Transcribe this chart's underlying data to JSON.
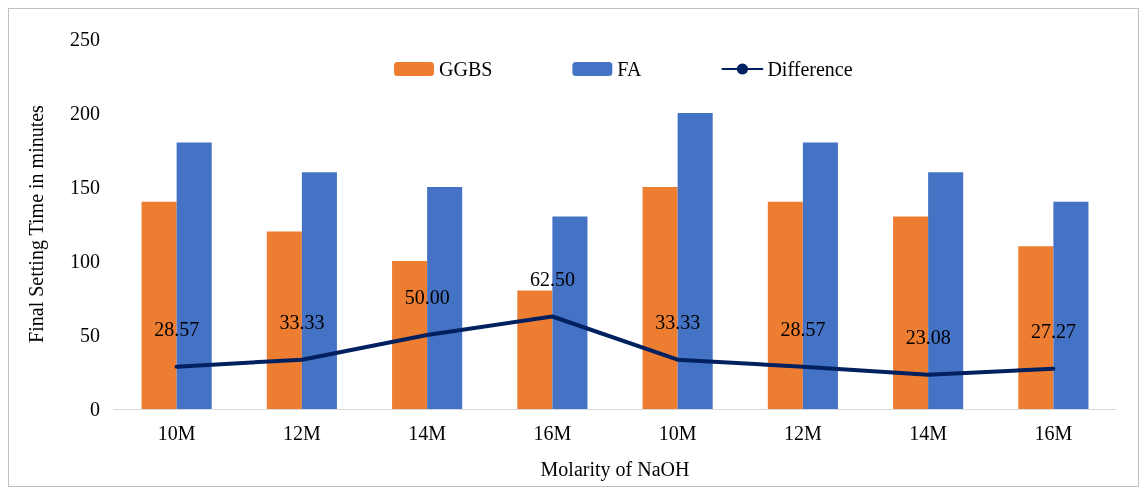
{
  "chart_data": {
    "type": "bar",
    "xlabel": "Molarity of NaOH",
    "ylabel": "Final Setting Time in minutes",
    "categories": [
      "10M",
      "12M",
      "14M",
      "16M",
      "10M",
      "12M",
      "14M",
      "16M"
    ],
    "series": [
      {
        "name": "GGBS",
        "color": "#ed7d31",
        "values": [
          140,
          120,
          100,
          80,
          150,
          140,
          130,
          110
        ]
      },
      {
        "name": "FA",
        "color": "#4472c4",
        "values": [
          180,
          160,
          150,
          130,
          200,
          180,
          160,
          140
        ]
      },
      {
        "name": "Difference",
        "type": "line",
        "color": "#002060",
        "values": [
          28.57,
          33.33,
          50.0,
          62.5,
          33.33,
          28.57,
          23.08,
          27.27
        ],
        "value_labels": [
          "28.57",
          "33.33",
          "50.00",
          "62.50",
          "33.33",
          "28.57",
          "23.08",
          "27.27"
        ]
      }
    ],
    "ylim": [
      0,
      250
    ],
    "yticks": [
      0,
      50,
      100,
      150,
      200,
      250
    ],
    "grid": false,
    "legend": "top",
    "marker": "none",
    "line_style": "solid"
  }
}
